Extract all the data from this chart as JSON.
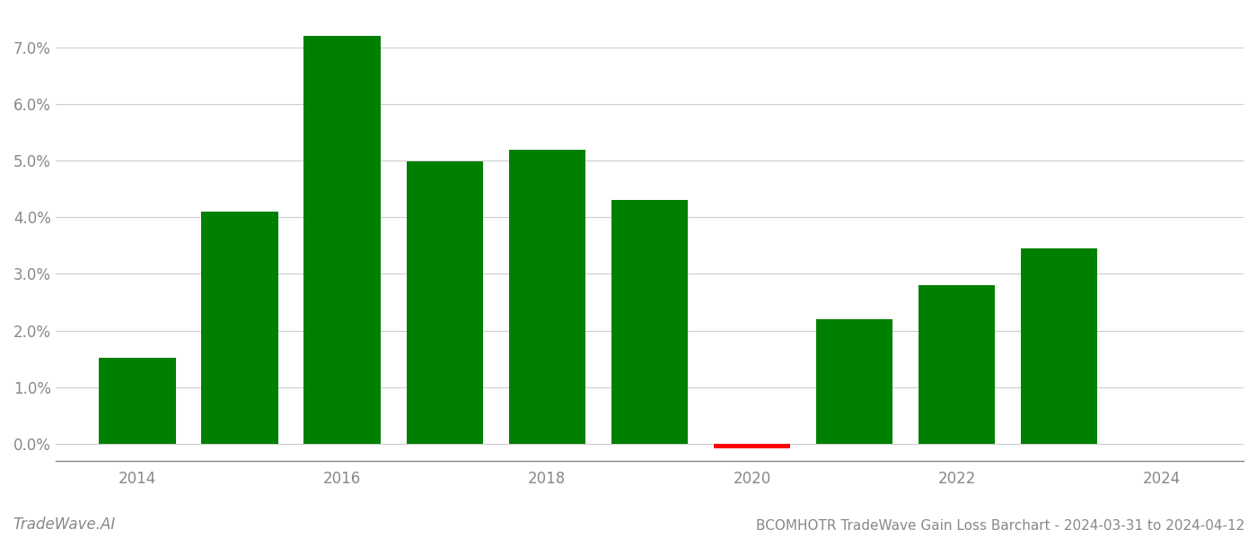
{
  "years": [
    2014,
    2015,
    2016,
    2017,
    2018,
    2019,
    2020,
    2021,
    2022,
    2023
  ],
  "values": [
    0.0152,
    0.041,
    0.072,
    0.0498,
    0.052,
    0.043,
    -0.0008,
    0.022,
    0.028,
    0.0345
  ],
  "colors": [
    "#008000",
    "#008000",
    "#008000",
    "#008000",
    "#008000",
    "#008000",
    "#ff0000",
    "#008000",
    "#008000",
    "#008000"
  ],
  "title": "BCOMHOTR TradeWave Gain Loss Barchart - 2024-03-31 to 2024-04-12",
  "watermark": "TradeWave.AI",
  "ylim_min": -0.003,
  "ylim_max": 0.076,
  "ytick_step": 0.01,
  "bar_width": 0.75,
  "background_color": "#ffffff",
  "grid_color": "#cccccc",
  "axis_color": "#888888",
  "tick_color": "#888888",
  "title_fontsize": 11,
  "watermark_fontsize": 12,
  "figsize": [
    14.0,
    6.0
  ],
  "dpi": 100,
  "xlim_min": 2013.2,
  "xlim_max": 2024.8,
  "xticks": [
    2014,
    2016,
    2018,
    2020,
    2022,
    2024
  ]
}
